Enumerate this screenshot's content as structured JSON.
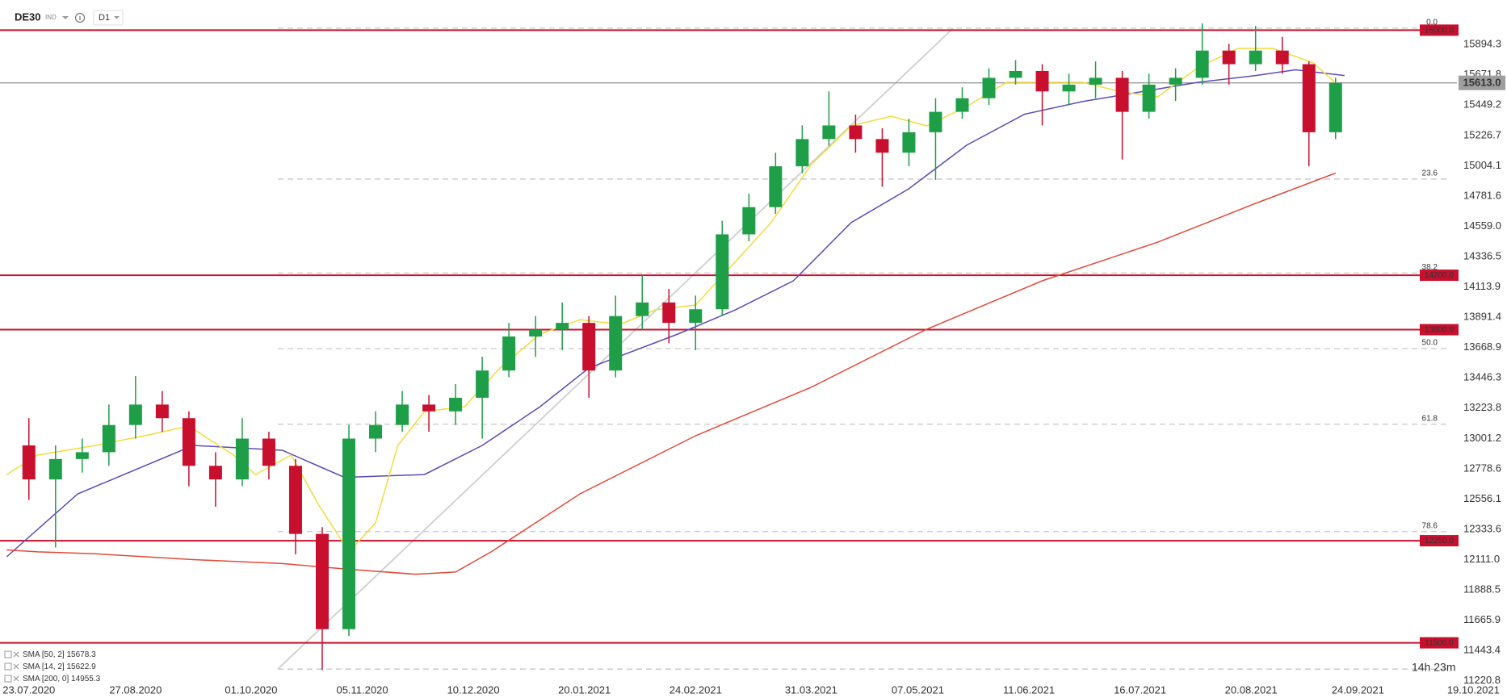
{
  "header": {
    "symbol": "DE30",
    "market": "IND",
    "interval": "D1"
  },
  "chart_data": {
    "type": "candlestick",
    "candles": {
      "x": [
        0,
        6,
        12,
        18,
        24,
        30,
        36,
        42,
        48,
        54,
        60,
        66,
        72,
        78,
        84,
        90,
        96,
        102,
        108,
        114,
        120,
        126,
        132,
        138,
        144,
        150,
        156,
        162,
        168,
        174,
        180,
        186,
        192,
        198,
        204,
        210,
        216,
        222,
        228,
        234,
        240,
        246,
        252,
        258,
        264,
        270,
        276,
        282,
        288,
        294
      ],
      "open": [
        12950,
        12700,
        12850,
        12900,
        13100,
        13250,
        13150,
        12800,
        12700,
        13000,
        12800,
        12300,
        11600,
        13000,
        13100,
        13250,
        13200,
        13300,
        13500,
        13750,
        13800,
        13850,
        13500,
        13900,
        14000,
        13850,
        13950,
        14500,
        14700,
        15000,
        15200,
        15300,
        15200,
        15100,
        15250,
        15400,
        15500,
        15650,
        15700,
        15550,
        15600,
        15650,
        15400,
        15600,
        15650,
        15850,
        15750,
        15850,
        15750,
        15250
      ],
      "high": [
        13150,
        12950,
        13000,
        13250,
        13460,
        13350,
        13200,
        12900,
        13150,
        13050,
        12850,
        12350,
        13100,
        13200,
        13350,
        13320,
        13400,
        13600,
        13850,
        13900,
        14000,
        13900,
        14050,
        14200,
        14100,
        14050,
        14600,
        14800,
        15100,
        15300,
        15550,
        15380,
        15280,
        15350,
        15500,
        15580,
        15720,
        15780,
        15750,
        15680,
        15770,
        15700,
        15680,
        15720,
        16050,
        15900,
        16030,
        15950,
        15770,
        15650
      ],
      "low": [
        12550,
        12200,
        12750,
        12800,
        13000,
        13050,
        12650,
        12500,
        12650,
        12700,
        12150,
        11300,
        11550,
        12900,
        13050,
        13050,
        13100,
        13000,
        13450,
        13600,
        13650,
        13300,
        13450,
        13800,
        13700,
        13650,
        13900,
        14450,
        14650,
        14950,
        15150,
        15100,
        14850,
        15000,
        14900,
        15350,
        15450,
        15600,
        15300,
        15450,
        15500,
        15050,
        15350,
        15480,
        15600,
        15600,
        15700,
        15680,
        15000,
        15200
      ],
      "close": [
        12700,
        12850,
        12900,
        13100,
        13250,
        13150,
        12800,
        12700,
        13000,
        12800,
        12300,
        11600,
        13000,
        13100,
        13250,
        13200,
        13300,
        13500,
        13750,
        13800,
        13850,
        13500,
        13900,
        14000,
        13850,
        13950,
        14500,
        14700,
        15000,
        15200,
        15300,
        15200,
        15100,
        15250,
        15400,
        15500,
        15650,
        15700,
        15550,
        15600,
        15650,
        15400,
        15600,
        15650,
        15850,
        15750,
        15850,
        15750,
        15250,
        15613
      ],
      "up_color": "#1f9e48",
      "down_color": "#c8102e"
    },
    "series": [
      {
        "name": "SMA [50, 2]",
        "last": 15678.3,
        "color": "#5b4bb7",
        "x": [
          -5,
          11,
          37,
          57,
          71,
          89,
          102,
          115,
          126,
          146,
          159,
          172,
          185,
          198,
          211,
          224,
          237,
          250,
          263,
          276,
          285,
          296
        ],
        "values": [
          12132,
          12594,
          12950,
          12914,
          12715,
          12736,
          12950,
          13234,
          13519,
          13768,
          13946,
          14159,
          14586,
          14835,
          15155,
          15382,
          15475,
          15546,
          15617,
          15667,
          15709,
          15667
        ]
      },
      {
        "name": "SMA [14, 2]",
        "last": 15622.9,
        "color": "#f2dc3c",
        "x": [
          -5,
          2,
          15,
          26,
          36,
          46,
          51,
          59,
          65,
          72,
          78,
          83,
          89,
          98,
          106,
          115,
          124,
          133,
          141,
          150,
          159,
          167,
          176,
          185,
          194,
          202,
          211,
          220,
          228,
          237,
          246,
          254,
          263,
          272,
          280,
          289,
          295
        ],
        "values": [
          12736,
          12879,
          12950,
          13021,
          13092,
          12879,
          12736,
          12879,
          12523,
          12168,
          12381,
          12950,
          13199,
          13234,
          13519,
          13768,
          13874,
          13839,
          13946,
          13981,
          14301,
          14586,
          15012,
          15297,
          15368,
          15297,
          15439,
          15617,
          15617,
          15617,
          15546,
          15510,
          15724,
          15866,
          15866,
          15759,
          15581
        ]
      },
      {
        "name": "SMA [200, 0]",
        "last": 14955.3,
        "color": "#e04a3a",
        "x": [
          -5,
          2,
          15,
          37,
          57,
          72,
          87,
          96,
          104,
          124,
          150,
          176,
          202,
          228,
          254,
          276,
          294
        ],
        "values": [
          12182,
          12168,
          12154,
          12111,
          12082,
          12040,
          12004,
          12020,
          12168,
          12594,
          13021,
          13377,
          13803,
          14159,
          14443,
          14728,
          14950
        ]
      }
    ],
    "levels": [
      {
        "value": 16000,
        "label": "16000.0"
      },
      {
        "value": 14200,
        "label": "14200.0"
      },
      {
        "value": 13800,
        "label": "13800.0"
      },
      {
        "value": 12250,
        "label": "12250.0"
      },
      {
        "value": 11500,
        "label": "11500.0"
      }
    ],
    "level_color": "#c8102e",
    "current_price": {
      "value": 15613,
      "label": "15613.0"
    },
    "fib": {
      "x": [
        56,
        208
      ],
      "values": [
        11307,
        16015
      ],
      "levels": [
        {
          "value": 16015,
          "label": "0.0"
        },
        {
          "value": 14906,
          "label": "23.6"
        },
        {
          "value": 14216,
          "label": "38.2"
        },
        {
          "value": 13661,
          "label": "50.0"
        },
        {
          "value": 13106,
          "label": "61.8"
        },
        {
          "value": 12317,
          "label": "78.6"
        }
      ]
    },
    "xlim": [
      -6.5,
      321.3
    ],
    "xticks": [
      {
        "value": 0,
        "label": "23.07.2020"
      },
      {
        "value": 24,
        "label": "27.08.2020"
      },
      {
        "value": 50,
        "label": "01.10.2020"
      },
      {
        "value": 75,
        "label": "05.11.2020"
      },
      {
        "value": 100,
        "label": "10.12.2020"
      },
      {
        "value": 125,
        "label": "20.01.2021"
      },
      {
        "value": 150,
        "label": "24.02.2021"
      },
      {
        "value": 176,
        "label": "31.03.2021"
      },
      {
        "value": 200,
        "label": "07.05.2021"
      },
      {
        "value": 225,
        "label": "11.06.2021"
      },
      {
        "value": 250,
        "label": "16.07.2021"
      },
      {
        "value": 275,
        "label": "20.08.2021"
      },
      {
        "value": 299,
        "label": "24.09.2021"
      },
      {
        "value": 325,
        "label": "19.10.2021"
      }
    ],
    "ylim": [
      11195.4,
      16221.5
    ],
    "yticks": [
      11220.8,
      11443.4,
      11665.9,
      11888.5,
      {
        "value": 12111,
        "label": "12111.0"
      },
      12333.6,
      12556.1,
      12778.6,
      13001.2,
      13223.8,
      13446.3,
      13668.9,
      13891.4,
      14113.9,
      14336.5,
      {
        "value": 14559,
        "label": "14559.0"
      },
      14781.6,
      15004.1,
      15226.7,
      15449.2,
      15671.8,
      15894.3
    ],
    "timer": "14h 23m"
  }
}
